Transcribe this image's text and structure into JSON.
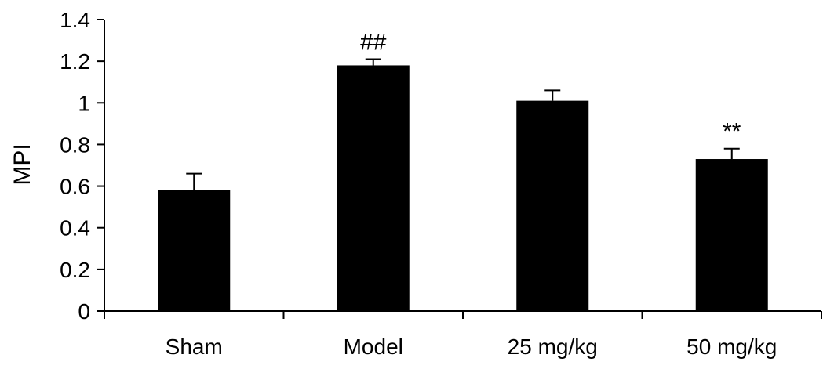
{
  "chart_data": {
    "type": "bar",
    "title": "",
    "xlabel": "",
    "ylabel": "MPI",
    "ylim": [
      0,
      1.4
    ],
    "yticks": [
      0,
      0.2,
      0.4,
      0.6,
      0.8,
      1,
      1.2,
      1.4
    ],
    "ytick_labels": [
      "0",
      "0.2",
      "0.4",
      "0.6",
      "0.8",
      "1",
      "1.2",
      "1.4"
    ],
    "categories": [
      "Sham",
      "Model",
      "25 mg/kg",
      "50 mg/kg"
    ],
    "values": [
      0.58,
      1.18,
      1.01,
      0.73
    ],
    "errors": [
      0.08,
      0.03,
      0.05,
      0.05
    ],
    "annotations": [
      "",
      "##",
      "",
      "**"
    ],
    "bar_color": "#000000",
    "grid": false,
    "legend": "none"
  }
}
